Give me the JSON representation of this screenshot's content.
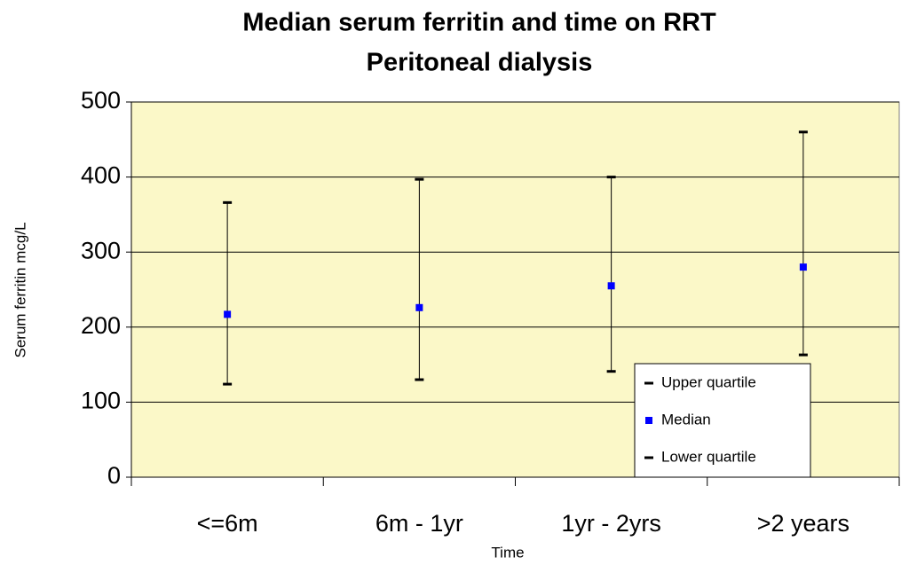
{
  "chart_data": {
    "type": "quartile-range",
    "title": "Median serum ferritin and time on RRT",
    "subtitle": "Peritoneal dialysis",
    "x_label": "Time",
    "y_label": "Serum ferritin mcg/L",
    "categories": [
      "<=6m",
      "6m - 1yr",
      "1yr - 2yrs",
      ">2 years"
    ],
    "series": [
      {
        "name": "Upper quartile",
        "color": "#000000",
        "values": [
          366,
          397,
          400,
          460
        ]
      },
      {
        "name": "Median",
        "color": "#0000ff",
        "values": [
          217,
          226,
          255,
          280
        ]
      },
      {
        "name": "Lower quartile",
        "color": "#000000",
        "values": [
          124,
          130,
          141,
          163
        ]
      }
    ],
    "ylim": [
      0,
      500
    ],
    "yticks": [
      0,
      100,
      200,
      300,
      400,
      500
    ],
    "grid": true,
    "legend": "lower right",
    "background": "#fbf8c8"
  }
}
